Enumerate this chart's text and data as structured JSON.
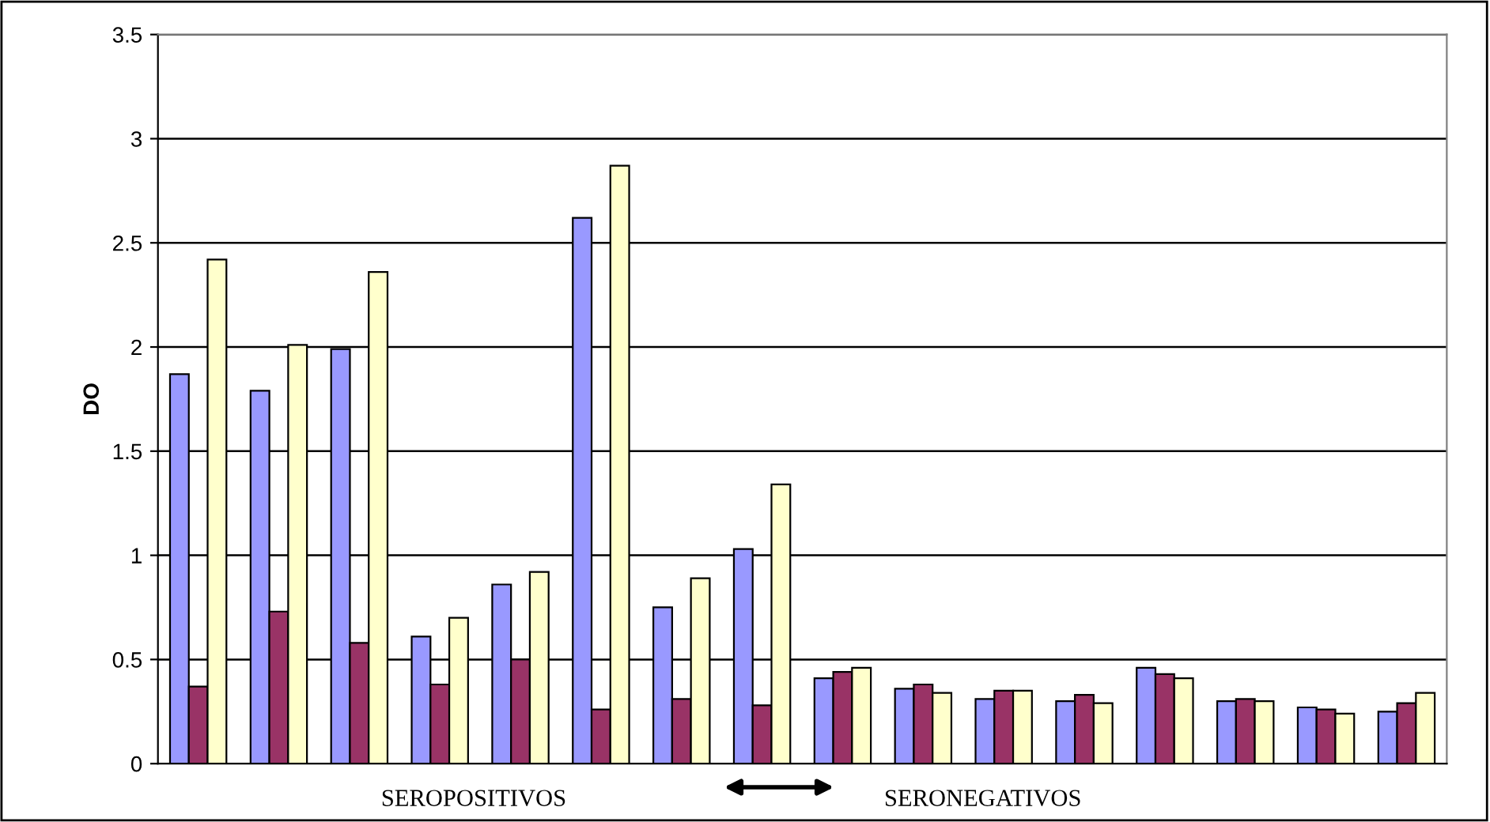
{
  "chart_data": {
    "type": "bar",
    "ylabel": "DO",
    "categories": [
      null,
      null,
      null,
      null,
      null,
      null,
      null,
      null,
      null,
      null,
      null,
      null,
      null,
      null,
      null,
      null
    ],
    "series": [
      {
        "color": "#9999ff",
        "values": [
          1.87,
          1.79,
          1.99,
          0.61,
          0.86,
          2.62,
          0.75,
          1.03,
          0.41,
          0.36,
          0.31,
          0.3,
          0.46,
          0.3,
          0.27,
          0.25
        ]
      },
      {
        "color": "#993366",
        "values": [
          0.37,
          0.73,
          0.58,
          0.38,
          0.5,
          0.26,
          0.31,
          0.28,
          0.44,
          0.38,
          0.35,
          0.33,
          0.43,
          0.31,
          0.26,
          0.29
        ]
      },
      {
        "color": "#ffffcc",
        "values": [
          2.42,
          2.01,
          2.36,
          0.7,
          0.92,
          2.87,
          0.89,
          1.34,
          0.46,
          0.34,
          0.35,
          0.29,
          0.41,
          0.3,
          0.24,
          0.34
        ]
      }
    ],
    "ylim": [
      0,
      3.5
    ],
    "yticks": [
      0,
      0.5,
      1,
      1.5,
      2,
      2.5,
      3,
      3.5
    ],
    "grid": "y",
    "annotations": [
      "SEROPOSITIVOS",
      "SERONEGATIVOS"
    ]
  }
}
